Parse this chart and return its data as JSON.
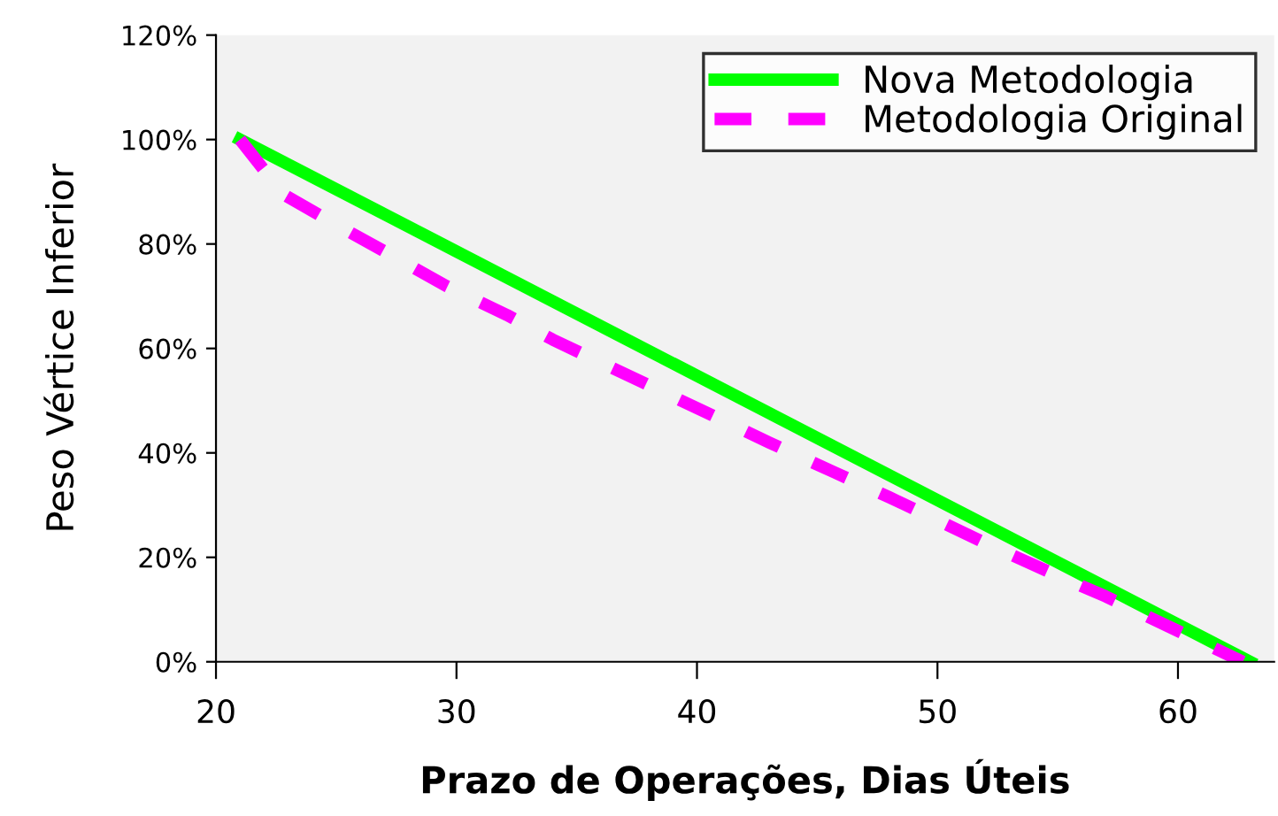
{
  "chart_data": {
    "type": "line",
    "xlabel": "Prazo de Operações, Dias Úteis",
    "ylabel": "Peso Vértice Inferior",
    "xlim": [
      20,
      64
    ],
    "xticks": [
      20,
      30,
      40,
      50,
      60
    ],
    "ylim": [
      0,
      120
    ],
    "yticks": [
      {
        "value": 0,
        "label": "0%"
      },
      {
        "value": 20,
        "label": "20%"
      },
      {
        "value": 40,
        "label": "40%"
      },
      {
        "value": 60,
        "label": "60%"
      },
      {
        "value": 80,
        "label": "80%"
      },
      {
        "value": 100,
        "label": "100%"
      },
      {
        "value": 120,
        "label": "120%"
      }
    ],
    "grid": false,
    "legend": "top right",
    "marker": "none",
    "series": [
      {
        "name": "Nova Metodologia",
        "color": "#00ff00",
        "line_style": "solid",
        "x": [
          21,
          63
        ],
        "values": [
          100,
          0
        ]
      },
      {
        "name": "Metodologia Original",
        "color": "#ff00ff",
        "line_style": "dashed",
        "x": [
          21,
          22.8,
          25,
          27,
          29.6,
          32.1,
          34,
          36,
          38.8,
          41,
          43,
          45.7,
          48,
          50,
          52,
          54.6,
          57,
          59,
          61.6,
          62.7
        ],
        "values": [
          100,
          89.5,
          83.7,
          78.6,
          71.9,
          66.4,
          61.7,
          57.3,
          51.2,
          46.4,
          42,
          36.3,
          31.5,
          27.1,
          22.7,
          17.3,
          12.5,
          8.1,
          2.4,
          0
        ]
      }
    ]
  }
}
